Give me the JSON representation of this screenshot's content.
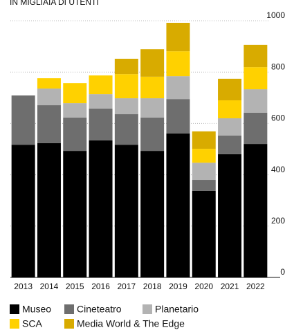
{
  "chart_data": {
    "type": "bar",
    "stacked": true,
    "title": "IN MIGLIAIA DI UTENTI",
    "categories": [
      "2013",
      "2014",
      "2015",
      "2016",
      "2017",
      "2018",
      "2019",
      "2020",
      "2021",
      "2022"
    ],
    "series": [
      {
        "name": "Museo",
        "color": "#000000",
        "values": [
          517,
          523,
          493,
          534,
          517,
          493,
          561,
          337,
          480,
          520
        ]
      },
      {
        "name": "Cineteatro",
        "color": "#6e6e6e",
        "values": [
          192,
          148,
          130,
          124,
          119,
          130,
          134,
          43,
          73,
          122
        ]
      },
      {
        "name": "Planetario",
        "color": "#b3b3b3",
        "values": [
          null,
          65,
          56,
          56,
          62,
          75,
          89,
          67,
          67,
          91
        ]
      },
      {
        "name": "SCA",
        "color": "#ffd100",
        "values": [
          null,
          40,
          78,
          73,
          94,
          84,
          97,
          54,
          70,
          86
        ]
      },
      {
        "name": "Media World & The Edge",
        "color": "#d8ab00",
        "values": [
          null,
          null,
          null,
          null,
          60,
          107,
          111,
          68,
          84,
          87
        ]
      }
    ],
    "ylim": [
      0,
      1000
    ],
    "yticks": [
      0,
      200,
      400,
      600,
      800,
      1000
    ],
    "grid": true,
    "y_axis_side": "right"
  }
}
